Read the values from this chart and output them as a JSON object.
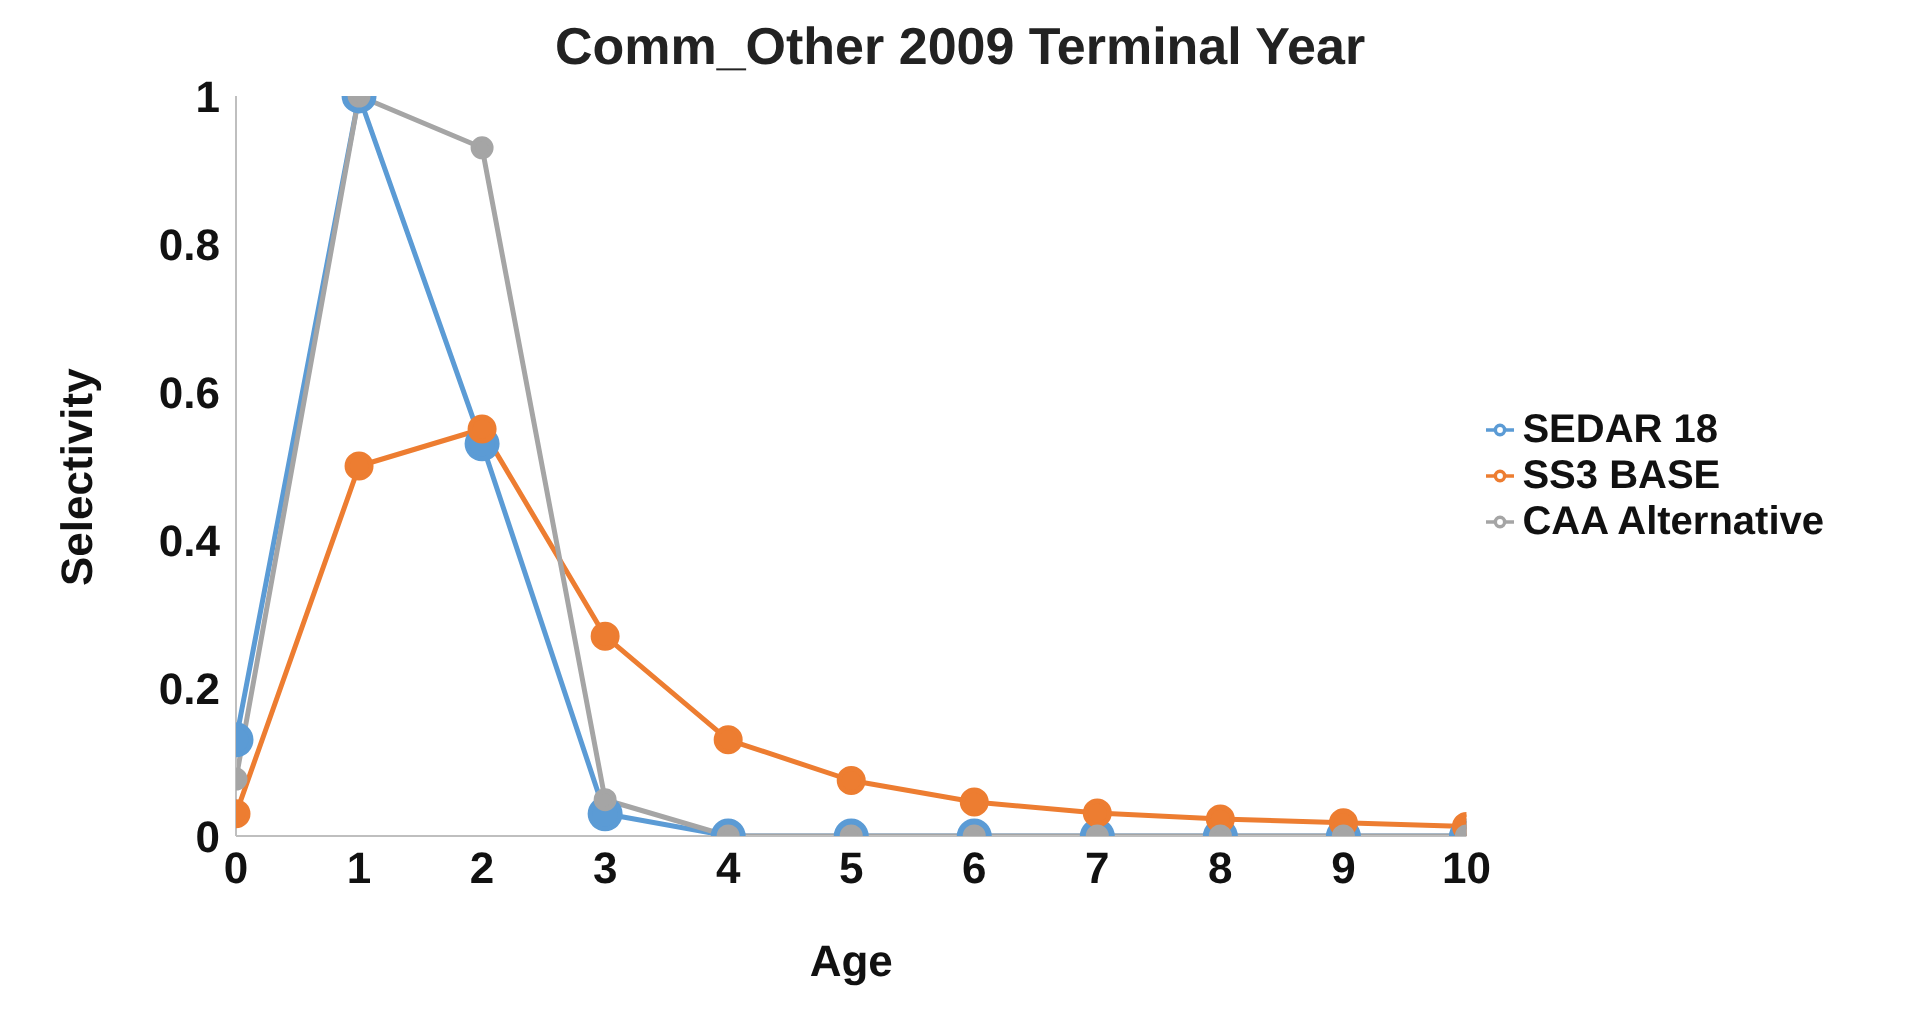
{
  "chart_data": {
    "type": "line",
    "title": "Comm_Other 2009 Terminal Year",
    "xlabel": "Age",
    "ylabel": "Selectivity",
    "x": [
      0,
      1,
      2,
      3,
      4,
      5,
      6,
      7,
      8,
      9,
      10
    ],
    "xlim": [
      0,
      10
    ],
    "xticks": [
      0,
      1,
      2,
      3,
      4,
      5,
      6,
      7,
      8,
      9,
      10
    ],
    "ylim": [
      0,
      1
    ],
    "yticks": [
      0,
      0.2,
      0.4,
      0.6,
      0.8,
      1
    ],
    "grid": false,
    "legend": "right",
    "marker": "circle",
    "series": [
      {
        "name": "SEDAR 18",
        "color": "#5b9bd5",
        "values": [
          0.13,
          1,
          0.53,
          0.03,
          0,
          0,
          0,
          0,
          0,
          0,
          0
        ]
      },
      {
        "name": "SS3 BASE",
        "color": "#ed7d31",
        "values": [
          0.03,
          0.5,
          0.55,
          0.27,
          0.13,
          0.075,
          0.046,
          0.031,
          0.023,
          0.018,
          0.013
        ]
      },
      {
        "name": "CAA Alternative",
        "color": "#a5a5a5",
        "values": [
          0.077,
          1,
          0.93,
          0.049,
          0,
          0,
          0,
          0,
          0,
          0,
          0
        ]
      }
    ]
  }
}
